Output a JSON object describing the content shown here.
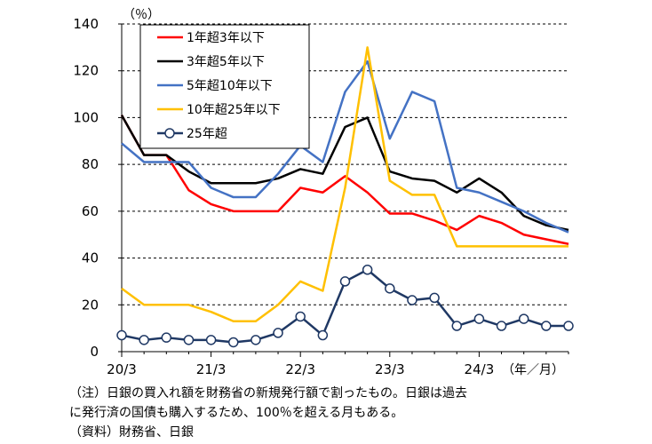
{
  "chart_data": {
    "type": "line",
    "unit_label": "（％）",
    "x_axis_unit_label": "（年／月）",
    "x_tick_labels": [
      "20/3",
      "21/3",
      "22/3",
      "23/3",
      "24/3"
    ],
    "x_tick_positions": [
      0,
      4,
      8,
      12,
      16
    ],
    "x_range": [
      0,
      20
    ],
    "ylim": [
      0,
      140
    ],
    "yticks": [
      0,
      20,
      40,
      60,
      80,
      100,
      120,
      140
    ],
    "grid": "horizontal dashed",
    "legend_placement": "top-left",
    "series": [
      {
        "name": "1年超3年以下",
        "color": "#ff0000",
        "marker": "none",
        "x": [
          0,
          1,
          2,
          3,
          4,
          5,
          6,
          7,
          8,
          9,
          10,
          11,
          12,
          13,
          14,
          15,
          16,
          17,
          18,
          19,
          20
        ],
        "values": [
          101,
          84,
          84,
          69,
          63,
          60,
          60,
          60,
          70,
          68,
          75,
          68,
          59,
          59,
          56,
          52,
          58,
          55,
          50,
          48,
          46
        ]
      },
      {
        "name": "3年超5年以下",
        "color": "#000000",
        "marker": "none",
        "x": [
          0,
          1,
          2,
          3,
          4,
          5,
          6,
          7,
          8,
          9,
          10,
          11,
          12,
          13,
          14,
          15,
          16,
          17,
          18,
          19,
          20
        ],
        "values": [
          101,
          84,
          84,
          77,
          72,
          72,
          72,
          74,
          78,
          76,
          96,
          100,
          77,
          74,
          73,
          68,
          74,
          68,
          58,
          54,
          52
        ]
      },
      {
        "name": "5年超10年以下",
        "color": "#4472c4",
        "marker": "none",
        "x": [
          0,
          1,
          2,
          3,
          4,
          5,
          6,
          7,
          8,
          9,
          10,
          11,
          12,
          13,
          14,
          15,
          16,
          17,
          18,
          19,
          20
        ],
        "values": [
          89,
          81,
          81,
          81,
          70,
          66,
          66,
          76,
          88,
          81,
          111,
          124,
          91,
          111,
          107,
          70,
          68,
          64,
          60,
          55,
          51
        ]
      },
      {
        "name": "10年超25年以下",
        "color": "#ffc000",
        "marker": "none",
        "x": [
          0,
          1,
          2,
          3,
          4,
          5,
          6,
          7,
          8,
          9,
          10,
          11,
          12,
          13,
          14,
          15,
          16,
          17,
          18,
          19,
          20
        ],
        "values": [
          27,
          20,
          20,
          20,
          17,
          13,
          13,
          20,
          30,
          26,
          70,
          130,
          73,
          67,
          67,
          45,
          45,
          45,
          45,
          45,
          45
        ]
      },
      {
        "name": "25年超",
        "color": "#1f3864",
        "marker": "circle",
        "x": [
          0,
          1,
          2,
          3,
          4,
          5,
          6,
          7,
          8,
          9,
          10,
          11,
          12,
          13,
          14,
          15,
          16,
          17,
          18,
          19,
          20
        ],
        "values": [
          7,
          5,
          6,
          5,
          5,
          4,
          5,
          8,
          15,
          7,
          30,
          35,
          27,
          22,
          23,
          11,
          14,
          11,
          14,
          11,
          11
        ]
      }
    ]
  },
  "notes": [
    "（注）日銀の買入れ額を財務省の新規発行額で割ったもの。日銀は過去",
    "に発行済の国債も購入するため、100％を超える月もある。",
    "（資料）財務省、日銀"
  ]
}
